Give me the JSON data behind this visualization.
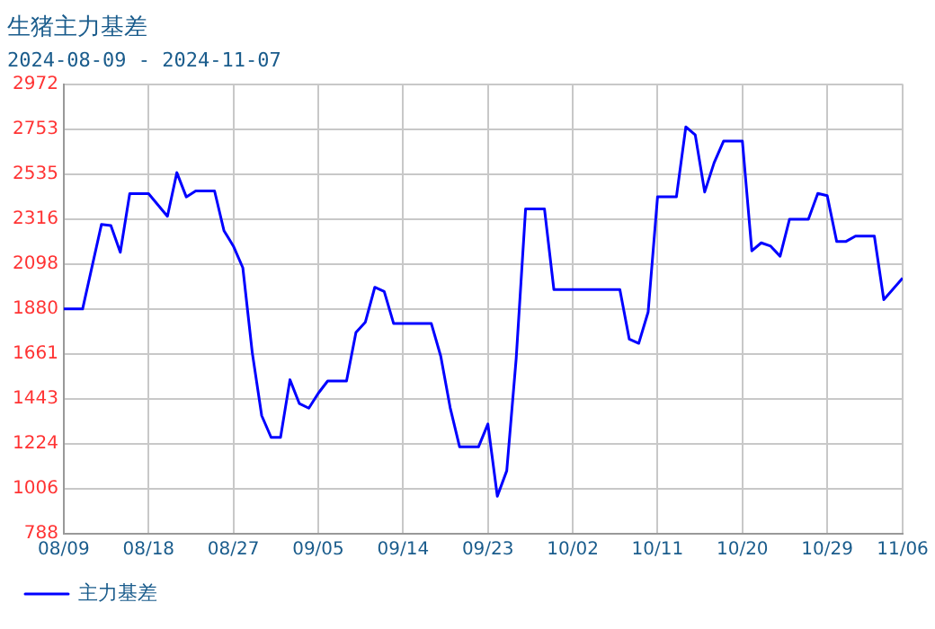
{
  "chart_data": {
    "type": "line",
    "title": "生猪主力基差",
    "subtitle": "2024-08-09 - 2024-11-07",
    "x": [
      "2024-08-09",
      "2024-08-11",
      "2024-08-13",
      "2024-08-14",
      "2024-08-15",
      "2024-08-16",
      "2024-08-18",
      "2024-08-20",
      "2024-08-21",
      "2024-08-22",
      "2024-08-23",
      "2024-08-25",
      "2024-08-26",
      "2024-08-27",
      "2024-08-28",
      "2024-08-29",
      "2024-08-30",
      "2024-08-31",
      "2024-09-01",
      "2024-09-02",
      "2024-09-03",
      "2024-09-04",
      "2024-09-05",
      "2024-09-06",
      "2024-09-08",
      "2024-09-09",
      "2024-09-10",
      "2024-09-11",
      "2024-09-12",
      "2024-09-13",
      "2024-09-17",
      "2024-09-18",
      "2024-09-19",
      "2024-09-20",
      "2024-09-22",
      "2024-09-23",
      "2024-09-24",
      "2024-09-25",
      "2024-09-26",
      "2024-09-27",
      "2024-09-29",
      "2024-09-30",
      "2024-10-07",
      "2024-10-08",
      "2024-10-09",
      "2024-10-10",
      "2024-10-11",
      "2024-10-13",
      "2024-10-14",
      "2024-10-15",
      "2024-10-16",
      "2024-10-17",
      "2024-10-18",
      "2024-10-20",
      "2024-10-21",
      "2024-10-22",
      "2024-10-23",
      "2024-10-24",
      "2024-10-25",
      "2024-10-27",
      "2024-10-28",
      "2024-10-29",
      "2024-10-30",
      "2024-10-31",
      "2024-11-01",
      "2024-11-03",
      "2024-11-04",
      "2024-11-06"
    ],
    "series": [
      {
        "name": "主力基差",
        "color": "#0000ff",
        "values": [
          1880,
          1880,
          2290,
          2285,
          2155,
          2440,
          2440,
          2330,
          2542,
          2424,
          2453,
          2453,
          2260,
          2185,
          2080,
          1668,
          1362,
          1256,
          1256,
          1536,
          1420,
          1398,
          1470,
          1530,
          1530,
          1766,
          1816,
          1985,
          1965,
          1809,
          1809,
          1650,
          1400,
          1210,
          1210,
          1321,
          970,
          1094,
          1638,
          2366,
          2366,
          1974,
          1974,
          1733,
          1713,
          1865,
          2425,
          2425,
          2764,
          2725,
          2448,
          2590,
          2695,
          2695,
          2162,
          2201,
          2185,
          2136,
          2316,
          2316,
          2441,
          2430,
          2208,
          2208,
          2234,
          2234,
          1925,
          2030
        ]
      }
    ],
    "xlim": [
      "2024-08-09",
      "2024-11-06"
    ],
    "xticks": [
      {
        "value": "2024-08-09",
        "label": "08/09"
      },
      {
        "value": "2024-08-18",
        "label": "08/18"
      },
      {
        "value": "2024-08-27",
        "label": "08/27"
      },
      {
        "value": "2024-09-05",
        "label": "09/05"
      },
      {
        "value": "2024-09-14",
        "label": "09/14"
      },
      {
        "value": "2024-09-23",
        "label": "09/23"
      },
      {
        "value": "2024-10-02",
        "label": "10/02"
      },
      {
        "value": "2024-10-11",
        "label": "10/11"
      },
      {
        "value": "2024-10-20",
        "label": "10/20"
      },
      {
        "value": "2024-10-29",
        "label": "10/29"
      },
      {
        "value": "2024-11-06",
        "label": "11/06"
      }
    ],
    "ylim": [
      788,
      2972
    ],
    "yticks": [
      788,
      1006,
      1224,
      1443,
      1661,
      1880,
      2098,
      2316,
      2535,
      2753,
      2972
    ],
    "grid": true,
    "legend": "bottom left",
    "marker": "none",
    "line_style": "solid"
  }
}
